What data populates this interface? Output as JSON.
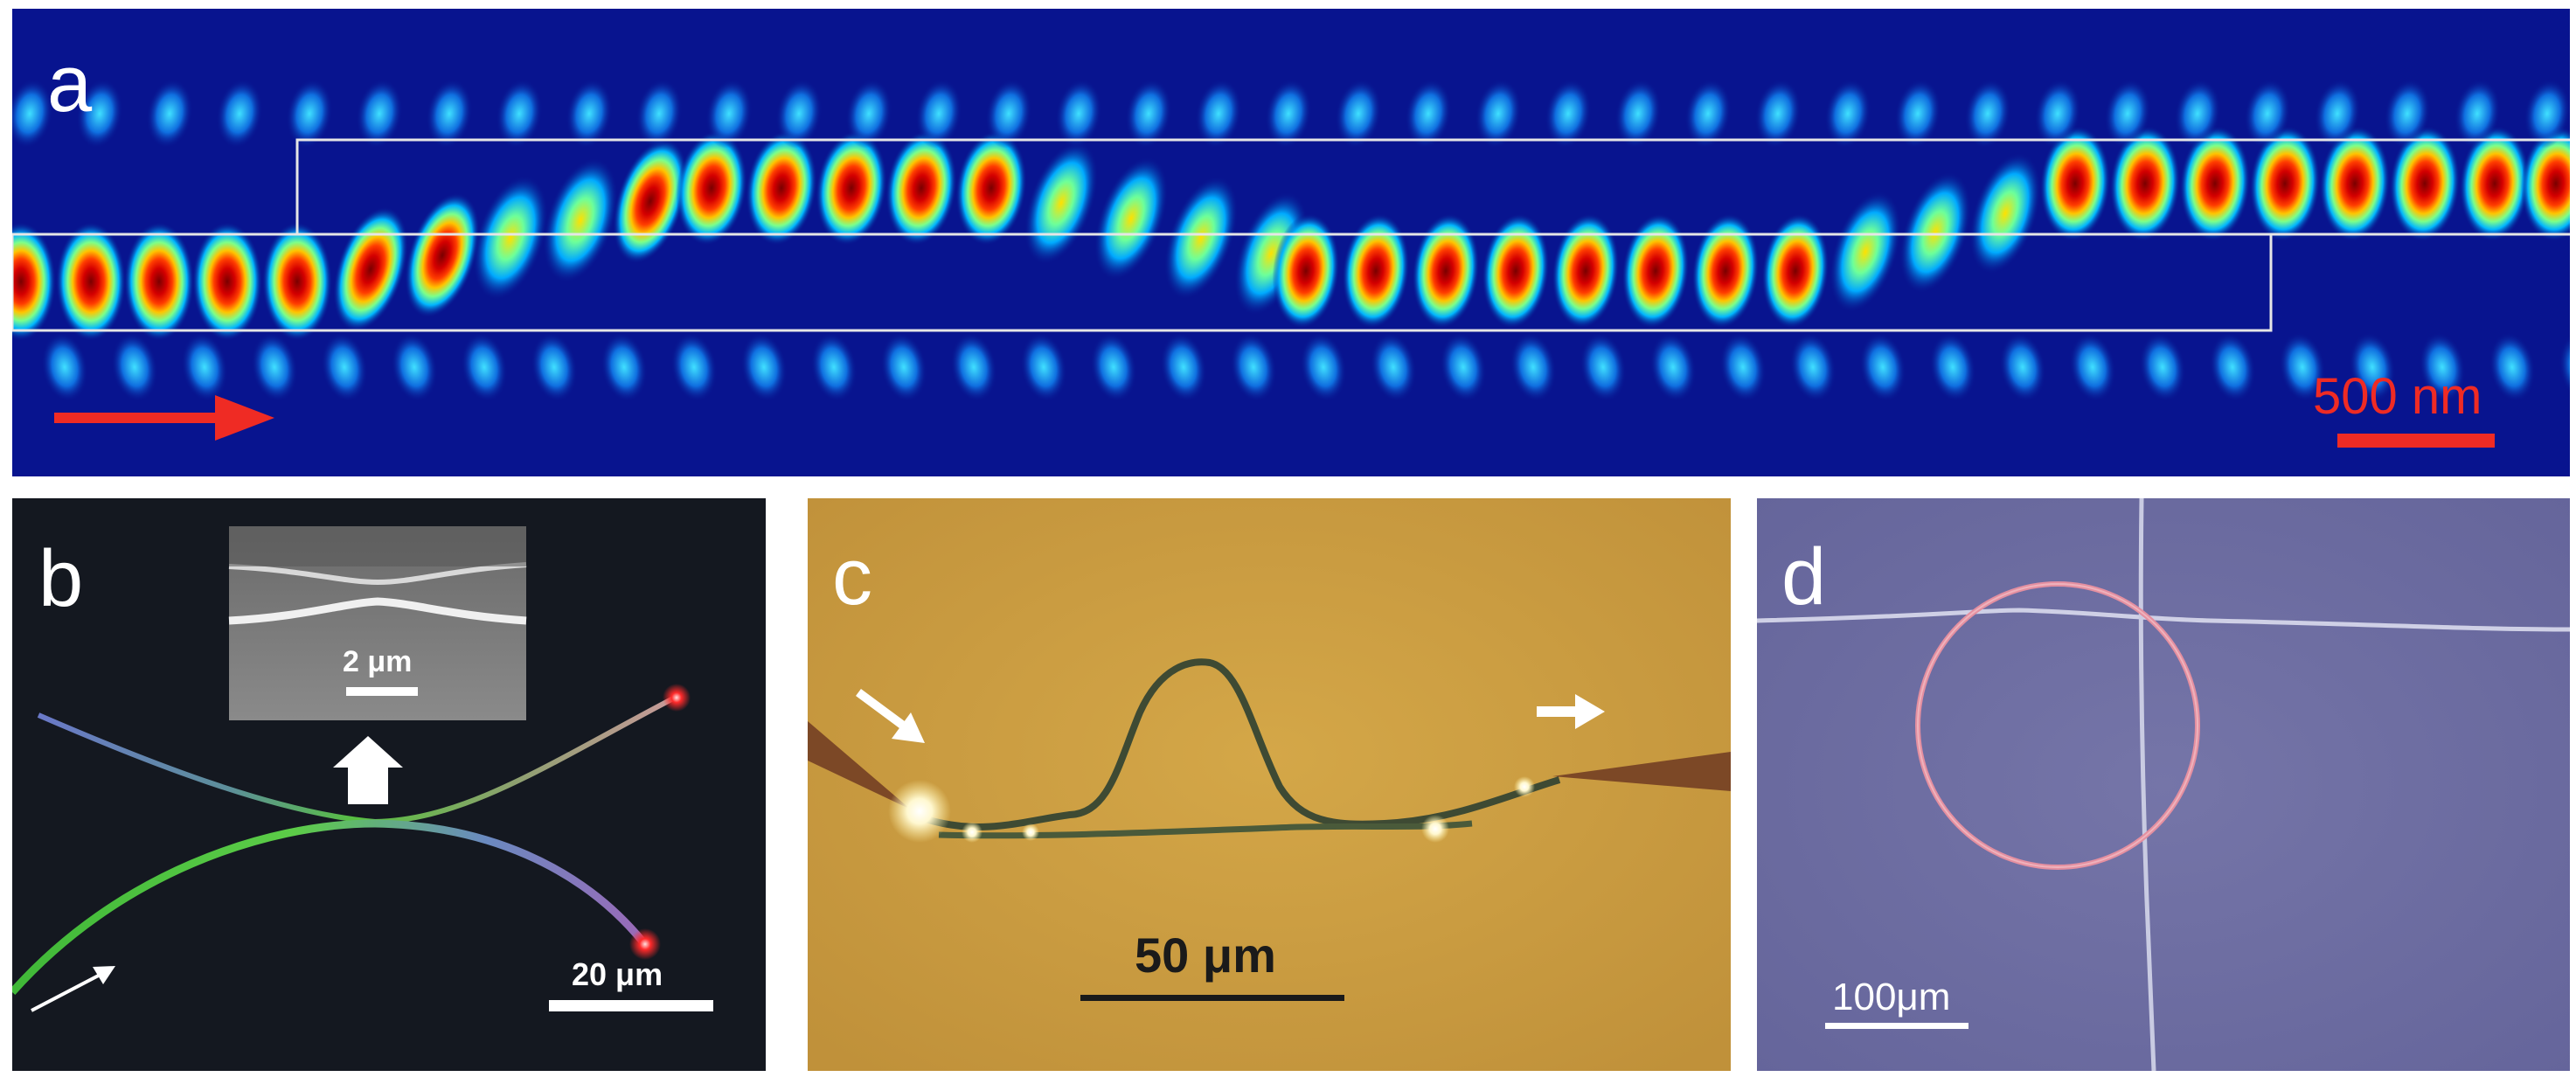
{
  "figure": {
    "panel_a": {
      "label": "a",
      "scale_bar_label": "500 nm",
      "colors": {
        "background": "#08148f",
        "mode_hot": "#8b0000",
        "arrow": "#ef2b24",
        "waveguide_outline": "#e6e6e6"
      },
      "icons": [
        "arrow-right-icon"
      ]
    },
    "panel_b": {
      "label": "b",
      "inset_scale_bar_label": "2 μm",
      "scale_bar_label": "20 μm",
      "colors": {
        "background": "#141820",
        "fiber_green": "#4fbf3a",
        "fiber_blue": "#6a79c8",
        "end_glow": "#ff2a2a"
      },
      "icons": [
        "arrow-up-icon",
        "arrow-diagonal-icon"
      ]
    },
    "panel_c": {
      "label": "c",
      "scale_bar_label": "50 μm",
      "colors": {
        "background": "#c99a3e",
        "loop": "#3e4a33"
      },
      "icons": [
        "arrow-diagonal-icon",
        "arrow-right-icon"
      ]
    },
    "panel_d": {
      "label": "d",
      "scale_bar_label": "100μm",
      "colors": {
        "background": "#6f6fa3",
        "ring": "#e48fa0",
        "fiber": "#cfd0e6"
      }
    }
  }
}
